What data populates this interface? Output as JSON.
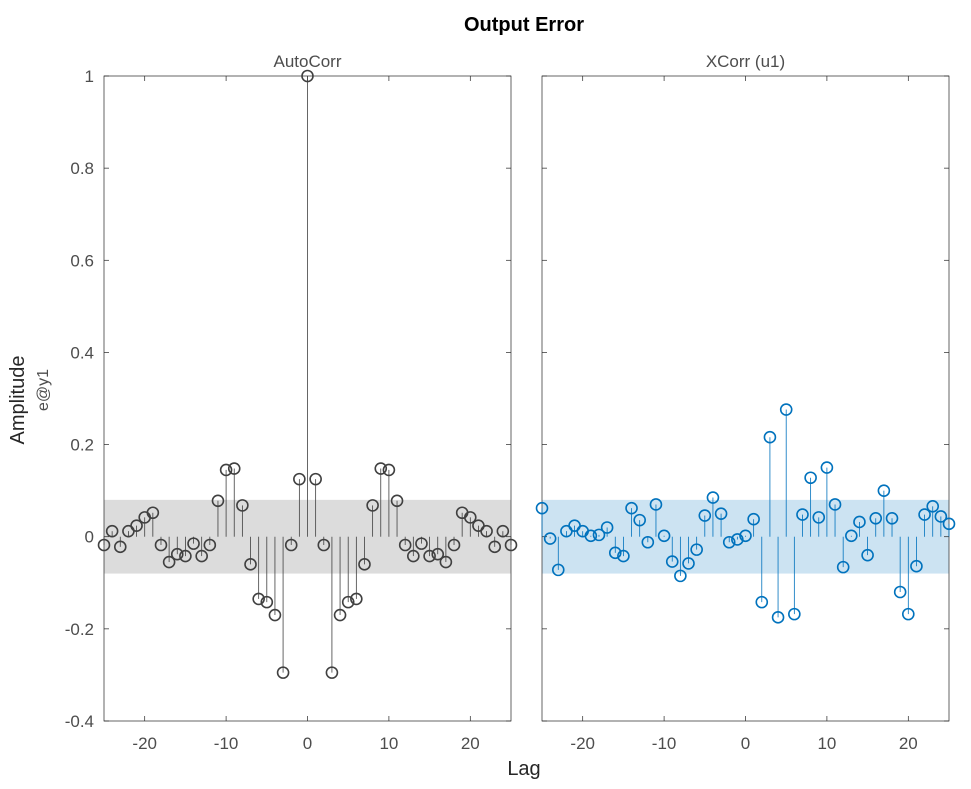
{
  "title": "Output Error",
  "xlabel": "Lag",
  "ylabel": "Amplitude",
  "ylabel_sub": "e@y1",
  "chart_data": [
    {
      "type": "stem",
      "title": "AutoCorr",
      "color": "#404040",
      "band_color": "#dcdcdc",
      "confidence_band": [
        -0.08,
        0.08
      ],
      "xlim": [
        -25,
        25
      ],
      "ylim": [
        -0.4,
        1.0
      ],
      "x_ticks": [
        -20,
        -10,
        0,
        10,
        20
      ],
      "y_ticks": [
        -0.4,
        -0.2,
        0,
        0.2,
        0.4,
        0.6,
        0.8,
        1
      ],
      "y_tick_labels": [
        "-0.4",
        "-0.2",
        "0",
        "0.2",
        "0.4",
        "0.6",
        "0.8",
        "1"
      ],
      "grid": false,
      "lags": [
        -25,
        -24,
        -23,
        -22,
        -21,
        -20,
        -19,
        -18,
        -17,
        -16,
        -15,
        -14,
        -13,
        -12,
        -11,
        -10,
        -9,
        -8,
        -7,
        -6,
        -5,
        -4,
        -3,
        -2,
        -1,
        0,
        1,
        2,
        3,
        4,
        5,
        6,
        7,
        8,
        9,
        10,
        11,
        12,
        13,
        14,
        15,
        16,
        17,
        18,
        19,
        20,
        21,
        22,
        23,
        24,
        25
      ],
      "values": [
        -0.018,
        0.012,
        -0.022,
        0.012,
        0.024,
        0.042,
        0.052,
        -0.018,
        -0.055,
        -0.038,
        -0.042,
        -0.015,
        -0.042,
        -0.018,
        0.078,
        0.145,
        0.148,
        0.068,
        -0.06,
        -0.135,
        -0.142,
        -0.17,
        -0.295,
        -0.018,
        0.125,
        1.0,
        0.125,
        -0.018,
        -0.295,
        -0.17,
        -0.142,
        -0.135,
        -0.06,
        0.068,
        0.148,
        0.145,
        0.078,
        -0.018,
        -0.042,
        -0.015,
        -0.042,
        -0.038,
        -0.055,
        -0.018,
        0.052,
        0.042,
        0.024,
        0.012,
        -0.022,
        0.012,
        -0.018
      ]
    },
    {
      "type": "stem",
      "title": "XCorr (u1)",
      "color": "#0072bd",
      "band_color": "#cce3f2",
      "confidence_band": [
        -0.08,
        0.08
      ],
      "xlim": [
        -25,
        25
      ],
      "ylim": [
        -0.4,
        1.0
      ],
      "x_ticks": [
        -20,
        -10,
        0,
        10,
        20
      ],
      "grid": false,
      "lags": [
        -25,
        -24,
        -23,
        -22,
        -21,
        -20,
        -19,
        -18,
        -17,
        -16,
        -15,
        -14,
        -13,
        -12,
        -11,
        -10,
        -9,
        -8,
        -7,
        -6,
        -5,
        -4,
        -3,
        -2,
        -1,
        0,
        1,
        2,
        3,
        4,
        5,
        6,
        7,
        8,
        9,
        10,
        11,
        12,
        13,
        14,
        15,
        16,
        17,
        18,
        19,
        20,
        21,
        22,
        23,
        24,
        25
      ],
      "values": [
        0.062,
        -0.004,
        -0.072,
        0.012,
        0.024,
        0.012,
        0.002,
        0.004,
        0.02,
        -0.035,
        -0.042,
        0.062,
        0.036,
        -0.012,
        0.07,
        0.002,
        -0.054,
        -0.085,
        -0.058,
        -0.028,
        0.046,
        0.085,
        0.05,
        -0.012,
        -0.006,
        0.002,
        0.038,
        -0.142,
        0.216,
        -0.175,
        0.276,
        -0.168,
        0.048,
        0.128,
        0.042,
        0.15,
        0.07,
        -0.066,
        0.002,
        0.032,
        -0.04,
        0.04,
        0.1,
        0.04,
        -0.12,
        -0.168,
        -0.064,
        0.048,
        0.066,
        0.044,
        0.028
      ]
    }
  ]
}
